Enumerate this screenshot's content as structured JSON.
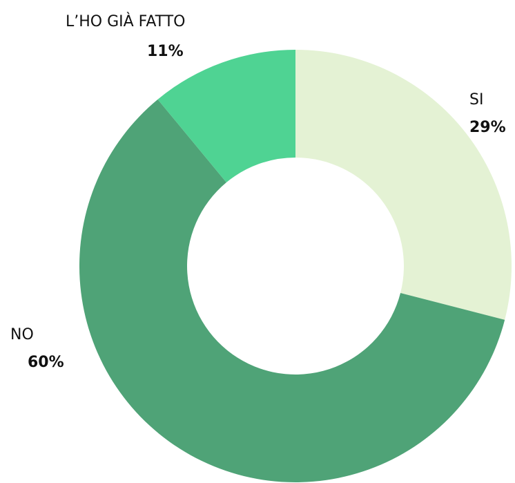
{
  "chart_data": {
    "type": "donut",
    "categories": [
      "SI",
      "NO",
      "L’HO GIÀ FATTO"
    ],
    "values": [
      29,
      60,
      11
    ],
    "value_labels": [
      "29%",
      "60%",
      "11%"
    ],
    "colors": [
      "#e4f2d4",
      "#4fa377",
      "#4fd393"
    ]
  }
}
